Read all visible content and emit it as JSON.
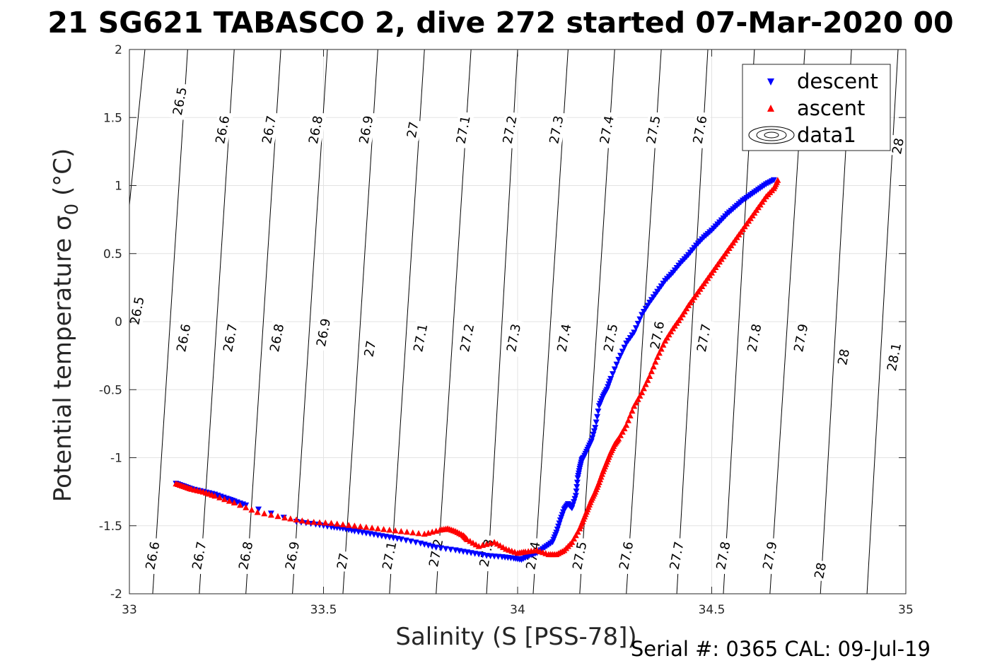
{
  "chart_data": {
    "type": "scatter",
    "title": "21 SG621 TABASCO 2, dive 272 started 07-Mar-2020 00",
    "xlabel": "Salinity (S [PSS-78])",
    "ylabel_main": "Potential temperature σ",
    "ylabel_sub": "0",
    "ylabel_unit": " (°C)",
    "xlim": [
      33,
      35
    ],
    "ylim": [
      -2,
      2
    ],
    "xticks": [
      "33",
      "33.5",
      "34",
      "34.5",
      "35"
    ],
    "xtick_values": [
      33,
      33.5,
      34,
      34.5,
      35
    ],
    "yticks": [
      "-2",
      "-1.5",
      "-1",
      "-0.5",
      "0",
      "0.5",
      "1",
      "1.5",
      "2"
    ],
    "ytick_values": [
      -2,
      -1.5,
      -1,
      -0.5,
      0,
      0.5,
      1,
      1.5,
      2
    ],
    "grid": true,
    "legend_placement": "top-right",
    "legend": [
      {
        "label": "descent",
        "marker": "down-triangle",
        "color": "#0000ff"
      },
      {
        "label": "ascent",
        "marker": "up-triangle",
        "color": "#ff0000"
      },
      {
        "label": "data1",
        "marker": "contour",
        "color": "#000000"
      }
    ],
    "series": [
      {
        "name": "descent",
        "color": "#0000ff",
        "marker": "v",
        "x": [
          33.12,
          33.14,
          33.16,
          33.19,
          33.22,
          33.25,
          33.27,
          33.3,
          33.43,
          33.48,
          33.52,
          33.55,
          33.58,
          33.62,
          33.66,
          33.7,
          33.75,
          33.79,
          33.84,
          33.88,
          33.92,
          33.96,
          33.99,
          34.01,
          34.03,
          34.05,
          34.07,
          34.09,
          34.1,
          34.11,
          34.12,
          34.13,
          34.14,
          34.15,
          34.155,
          34.16,
          34.165,
          34.17,
          34.18,
          34.19,
          34.2,
          34.21,
          34.22,
          34.23,
          34.24,
          34.26,
          34.28,
          34.3,
          34.32,
          34.34,
          34.36,
          34.38,
          34.4,
          34.42,
          34.44,
          34.46,
          34.48,
          34.5,
          34.52,
          34.54,
          34.56,
          34.58,
          34.6,
          34.62,
          34.64,
          34.66
        ],
        "y": [
          -1.19,
          -1.21,
          -1.23,
          -1.25,
          -1.27,
          -1.3,
          -1.32,
          -1.35,
          -1.47,
          -1.49,
          -1.51,
          -1.52,
          -1.54,
          -1.56,
          -1.58,
          -1.6,
          -1.63,
          -1.66,
          -1.68,
          -1.7,
          -1.72,
          -1.73,
          -1.74,
          -1.75,
          -1.72,
          -1.7,
          -1.66,
          -1.62,
          -1.55,
          -1.46,
          -1.38,
          -1.34,
          -1.37,
          -1.28,
          -1.15,
          -1.08,
          -1.02,
          -1.0,
          -0.94,
          -0.88,
          -0.78,
          -0.62,
          -0.55,
          -0.5,
          -0.42,
          -0.28,
          -0.16,
          -0.08,
          0.05,
          0.14,
          0.22,
          0.3,
          0.36,
          0.43,
          0.49,
          0.56,
          0.62,
          0.67,
          0.73,
          0.79,
          0.84,
          0.89,
          0.93,
          0.97,
          1.01,
          1.04
        ]
      },
      {
        "name": "ascent",
        "color": "#ff0000",
        "marker": "^",
        "x": [
          33.12,
          33.14,
          33.16,
          33.19,
          33.22,
          33.27,
          33.33,
          33.4,
          33.46,
          33.52,
          33.58,
          33.64,
          33.7,
          33.76,
          33.8,
          33.82,
          33.84,
          33.86,
          33.87,
          33.9,
          33.94,
          33.97,
          34.0,
          34.02,
          34.05,
          34.08,
          34.1,
          34.12,
          34.14,
          34.16,
          34.17,
          34.18,
          34.19,
          34.2,
          34.21,
          34.22,
          34.23,
          34.24,
          34.25,
          34.26,
          34.28,
          34.3,
          34.32,
          34.34,
          34.36,
          34.38,
          34.4,
          34.42,
          34.44,
          34.46,
          34.48,
          34.5,
          34.52,
          34.54,
          34.56,
          34.58,
          34.6,
          34.62,
          34.64,
          34.66,
          34.67
        ],
        "y": [
          -1.19,
          -1.21,
          -1.23,
          -1.25,
          -1.28,
          -1.33,
          -1.4,
          -1.44,
          -1.47,
          -1.48,
          -1.5,
          -1.52,
          -1.54,
          -1.56,
          -1.53,
          -1.52,
          -1.54,
          -1.57,
          -1.6,
          -1.65,
          -1.62,
          -1.67,
          -1.7,
          -1.69,
          -1.68,
          -1.71,
          -1.71,
          -1.68,
          -1.62,
          -1.52,
          -1.45,
          -1.38,
          -1.31,
          -1.25,
          -1.18,
          -1.1,
          -1.03,
          -0.96,
          -0.9,
          -0.86,
          -0.76,
          -0.62,
          -0.52,
          -0.4,
          -0.26,
          -0.14,
          -0.05,
          0.03,
          0.12,
          0.2,
          0.28,
          0.36,
          0.44,
          0.52,
          0.6,
          0.68,
          0.76,
          0.84,
          0.92,
          0.98,
          1.04
        ]
      }
    ],
    "contours": [
      {
        "label": "26.5",
        "x_top": 33.04,
        "x_bottom": 32.9
      },
      {
        "label": "26.6",
        "x_top": 33.15,
        "x_bottom": 33.06
      },
      {
        "label": "26.7",
        "x_top": 33.27,
        "x_bottom": 33.18
      },
      {
        "label": "26.8",
        "x_top": 33.39,
        "x_bottom": 33.3
      },
      {
        "label": "26.9",
        "x_top": 33.51,
        "x_bottom": 33.42
      },
      {
        "label": "27",
        "x_top": 33.64,
        "x_bottom": 33.55
      },
      {
        "label": "27.1",
        "x_top": 33.76,
        "x_bottom": 33.67
      },
      {
        "label": "27.2",
        "x_top": 33.88,
        "x_bottom": 33.79
      },
      {
        "label": "27.3",
        "x_top": 34.0,
        "x_bottom": 33.92
      },
      {
        "label": "27.4",
        "x_top": 34.13,
        "x_bottom": 34.04
      },
      {
        "label": "27.5",
        "x_top": 34.25,
        "x_bottom": 34.16
      },
      {
        "label": "27.6",
        "x_top": 34.37,
        "x_bottom": 34.28
      },
      {
        "label": "27.7",
        "x_top": 34.49,
        "x_bottom": 34.41
      },
      {
        "label": "27.8",
        "x_top": 34.61,
        "x_bottom": 34.53
      },
      {
        "label": "27.9",
        "x_top": 34.74,
        "x_bottom": 34.65
      },
      {
        "label": "28",
        "x_top": 34.86,
        "x_bottom": 34.78
      },
      {
        "label": "28.1",
        "x_top": 34.98,
        "x_bottom": 34.9
      }
    ],
    "contour_labels": [
      {
        "text": "26.5",
        "x": 33.13,
        "y": 1.62
      },
      {
        "text": "26.6",
        "x": 33.24,
        "y": 1.41
      },
      {
        "text": "26.7",
        "x": 33.36,
        "y": 1.41
      },
      {
        "text": "26.8",
        "x": 33.48,
        "y": 1.41
      },
      {
        "text": "26.9",
        "x": 33.61,
        "y": 1.41
      },
      {
        "text": "27",
        "x": 33.73,
        "y": 1.41
      },
      {
        "text": "27.1",
        "x": 33.86,
        "y": 1.41
      },
      {
        "text": "27.2",
        "x": 33.98,
        "y": 1.41
      },
      {
        "text": "27.3",
        "x": 34.1,
        "y": 1.41
      },
      {
        "text": "27.4",
        "x": 34.23,
        "y": 1.41
      },
      {
        "text": "27.5",
        "x": 34.35,
        "y": 1.41
      },
      {
        "text": "27.6",
        "x": 34.47,
        "y": 1.41
      },
      {
        "text": "28",
        "x": 34.98,
        "y": 1.29
      },
      {
        "text": "26.5",
        "x": 33.02,
        "y": 0.08
      },
      {
        "text": "26.6",
        "x": 33.14,
        "y": -0.12
      },
      {
        "text": "26.7",
        "x": 33.26,
        "y": -0.12
      },
      {
        "text": "26.8",
        "x": 33.38,
        "y": -0.12
      },
      {
        "text": "26.9",
        "x": 33.5,
        "y": -0.08
      },
      {
        "text": "27",
        "x": 33.62,
        "y": -0.2
      },
      {
        "text": "27.1",
        "x": 33.75,
        "y": -0.12
      },
      {
        "text": "27.2",
        "x": 33.87,
        "y": -0.12
      },
      {
        "text": "27.3",
        "x": 33.99,
        "y": -0.12
      },
      {
        "text": "27.4",
        "x": 34.12,
        "y": -0.12
      },
      {
        "text": "27.5",
        "x": 34.24,
        "y": -0.12
      },
      {
        "text": "27.6",
        "x": 34.36,
        "y": -0.1
      },
      {
        "text": "27.7",
        "x": 34.48,
        "y": -0.12
      },
      {
        "text": "27.8",
        "x": 34.61,
        "y": -0.12
      },
      {
        "text": "27.9",
        "x": 34.73,
        "y": -0.12
      },
      {
        "text": "28",
        "x": 34.84,
        "y": -0.26
      },
      {
        "text": "28.1",
        "x": 34.97,
        "y": -0.26
      },
      {
        "text": "26.6",
        "x": 33.06,
        "y": -1.72
      },
      {
        "text": "26.7",
        "x": 33.18,
        "y": -1.72
      },
      {
        "text": "26.8",
        "x": 33.3,
        "y": -1.72
      },
      {
        "text": "26.9",
        "x": 33.42,
        "y": -1.72
      },
      {
        "text": "27",
        "x": 33.55,
        "y": -1.76
      },
      {
        "text": "27.1",
        "x": 33.67,
        "y": -1.72
      },
      {
        "text": "27.2",
        "x": 33.79,
        "y": -1.7
      },
      {
        "text": "27.3",
        "x": 33.92,
        "y": -1.7
      },
      {
        "text": "27.4",
        "x": 34.04,
        "y": -1.72
      },
      {
        "text": "27.5",
        "x": 34.16,
        "y": -1.72
      },
      {
        "text": "27.6",
        "x": 34.28,
        "y": -1.72
      },
      {
        "text": "27.7",
        "x": 34.41,
        "y": -1.72
      },
      {
        "text": "27.8",
        "x": 34.53,
        "y": -1.72
      },
      {
        "text": "27.9",
        "x": 34.65,
        "y": -1.72
      },
      {
        "text": "28",
        "x": 34.78,
        "y": -1.83
      }
    ]
  },
  "footer": {
    "serial": "Serial #: 0365  CAL: 09-Jul-19"
  }
}
